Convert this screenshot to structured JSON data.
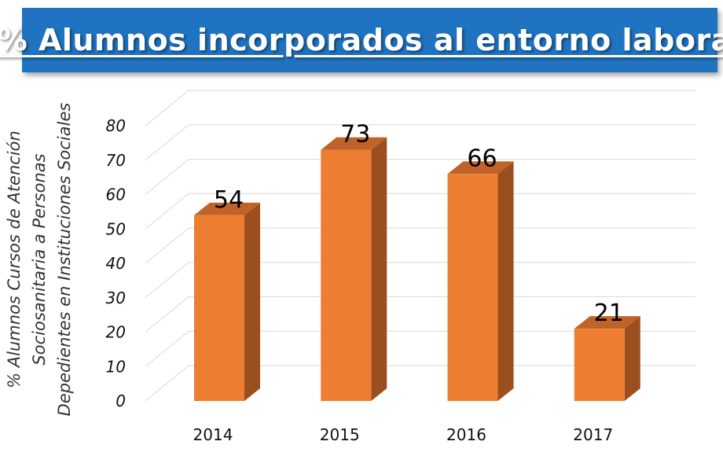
{
  "chart_data": {
    "type": "bar",
    "title": "% Alumnos incorporados al entorno laboral",
    "categories": [
      "2014",
      "2015",
      "2016",
      "2017"
    ],
    "values": [
      54,
      73,
      66,
      21
    ],
    "ylabel": [
      "% Alumnos Cursos de Atención",
      "Sociosanitaria a Personas",
      "Depedientes en Instituciones Sociales"
    ],
    "xlabel": "",
    "ylim": [
      0,
      80
    ],
    "yticks": [
      0,
      10,
      20,
      30,
      40,
      50,
      60,
      70,
      80
    ],
    "grid": true,
    "three_d": true,
    "colors": {
      "bar_front": "#ed7d31",
      "bar_side": "#9c4f1e",
      "bar_top": "#c0622a",
      "title_bg": "#1f73c0"
    }
  }
}
